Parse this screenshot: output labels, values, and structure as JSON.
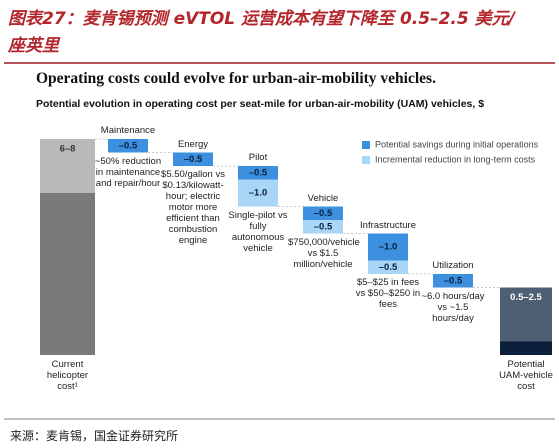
{
  "caption": "图表27：麦肯锡预测 eVTOL 运营成本有望下降至 0.5–2.5 美元/座英里",
  "source": "来源：麦肯锡，国金证券研究所",
  "chart_data": {
    "type": "waterfall",
    "title": "Operating costs could evolve for urban-air-mobility vehicles.",
    "subtitle": "Potential evolution in operating cost per seat-mile for urban-air-mobility (UAM) vehicles, $",
    "start": {
      "label": "Current helicopter cost¹",
      "range": [
        6,
        8
      ],
      "range_label": "6–8",
      "colors": [
        "#7a7a7a",
        "#b9b9b9"
      ]
    },
    "end": {
      "label": "Potential UAM-vehicle cost",
      "range": [
        0.5,
        2.5
      ],
      "range_label": "0.5–2.5",
      "colors": [
        "#0b1f3a",
        "#4f5f73"
      ]
    },
    "categories": [
      "Maintenance",
      "Energy",
      "Pilot",
      "Vehicle",
      "Infrastructure",
      "Utilization"
    ],
    "descriptions": [
      "~50% reduction in maintenance and repair/hour",
      "$5.50/gallon vs $0.13/kilowatt-hour; electric motor more efficient than combustion engine",
      "Single-pilot vs fully autonomous vehicle",
      "$750,000/vehicle vs $1.5 million/vehicle",
      "$5–$25 in fees vs $50–$250 in fees",
      "~6.0 hours/day vs ~1.5 hours/day"
    ],
    "series": [
      {
        "name": "Potential savings during initial operations",
        "color": "#3d8fe0",
        "values": [
          -0.5,
          -0.5,
          -0.5,
          -0.5,
          -1.0,
          -0.5
        ],
        "value_labels": [
          "–0.5",
          "–0.5",
          "–0.5",
          "–0.5",
          "–1.0",
          "–0.5"
        ]
      },
      {
        "name": "Incremental reduction in long-term costs",
        "color": "#a9d5f7",
        "values": [
          null,
          null,
          -1.0,
          -0.5,
          -0.5,
          null
        ],
        "value_labels": [
          null,
          null,
          "–1.0",
          "–0.5",
          "–0.5",
          null
        ]
      }
    ]
  }
}
